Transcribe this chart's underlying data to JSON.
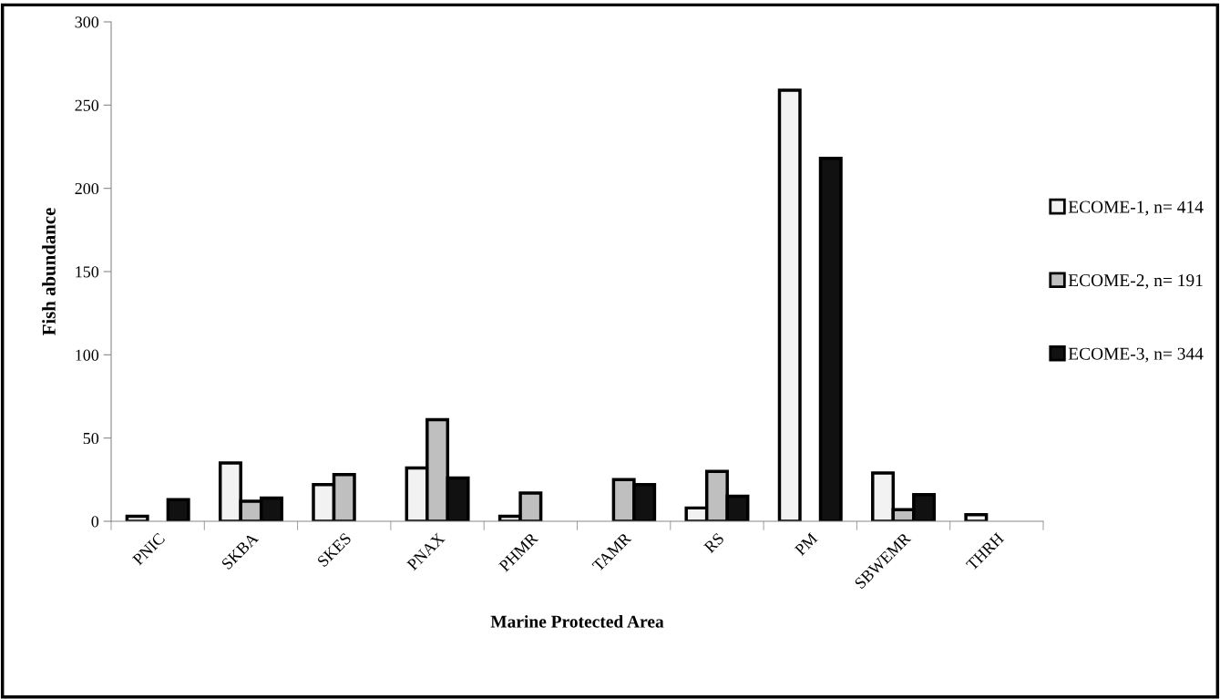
{
  "chart_data": {
    "type": "bar",
    "xlabel": "Marine Protected Area",
    "ylabel": "Fish abundance",
    "categories": [
      "PNIC",
      "SKBA",
      "SKES",
      "PNAX",
      "PHMR",
      "TAMR",
      "RS",
      "PM",
      "SBWEMR",
      "THRH"
    ],
    "series": [
      {
        "name": "ECOME-1, n= 414",
        "color": "#f2f2f2",
        "values": [
          3,
          35,
          22,
          32,
          3,
          null,
          8,
          259,
          29,
          4
        ]
      },
      {
        "name": "ECOME-2, n= 191",
        "color": "#bfbfbf",
        "values": [
          null,
          12,
          28,
          61,
          17,
          25,
          30,
          null,
          7,
          null
        ]
      },
      {
        "name": "ECOME-3, n= 344",
        "color": "#111111",
        "values": [
          13,
          14,
          null,
          26,
          null,
          22,
          15,
          218,
          16,
          null
        ]
      }
    ],
    "ylim": [
      0,
      300
    ],
    "yticks": [
      0,
      50,
      100,
      150,
      200,
      250,
      300
    ],
    "grid": false,
    "legend": "right"
  }
}
